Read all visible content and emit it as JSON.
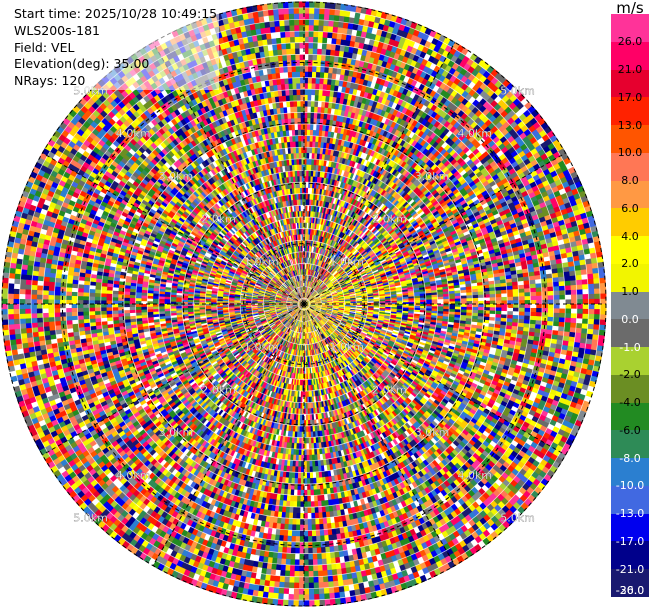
{
  "info": {
    "start_time": "Start time: 2025/10/28 10:49:15",
    "device": "WLS200s-181",
    "field": "Field: VEL",
    "elevation": "Elevation(deg): 35.00",
    "nrays": "NRays: 120"
  },
  "colorbar": {
    "unit": "m/s",
    "bins": [
      {
        "label": "26.0",
        "color": "#ff3399"
      },
      {
        "label": "21.0",
        "color": "#ff0066"
      },
      {
        "label": "17.0",
        "color": "#e6002e"
      },
      {
        "label": "13.0",
        "color": "#ff2200"
      },
      {
        "label": "10.0",
        "color": "#ff5500"
      },
      {
        "label": "8.0",
        "color": "#ff7755"
      },
      {
        "label": "6.0",
        "color": "#ff9944"
      },
      {
        "label": "4.0",
        "color": "#ffcc00"
      },
      {
        "label": "2.0",
        "color": "#ffff00"
      },
      {
        "label": "1.0",
        "color": "#f2f500"
      },
      {
        "label": "0.0",
        "color": "#808a92"
      },
      {
        "label": "-1.0",
        "color": "#6b6b6b"
      },
      {
        "label": "-2.0",
        "color": "#a9d130"
      },
      {
        "label": "-4.0",
        "color": "#6b8e23"
      },
      {
        "label": "-6.0",
        "color": "#228b22"
      },
      {
        "label": "-8.0",
        "color": "#2e8b57"
      },
      {
        "label": "-10.0",
        "color": "#2b7fd0"
      },
      {
        "label": "-13.0",
        "color": "#4169e1"
      },
      {
        "label": "-17.0",
        "color": "#0000ee"
      },
      {
        "label": "-21.0",
        "color": "#00008b"
      },
      {
        "label": "-26.0",
        "color": "#191970"
      },
      {
        "label": "-30.0",
        "color": ""
      }
    ]
  },
  "chart_data": {
    "type": "heatmap",
    "projection": "polar",
    "nrays": 120,
    "max_range_km": 5.0,
    "grid": true,
    "range_rings": [
      {
        "label": "1.0km",
        "km": 1.0
      },
      {
        "label": "2.0km",
        "km": 2.0
      },
      {
        "label": "3.0km",
        "km": 3.0
      },
      {
        "label": "4.0km",
        "km": 4.0
      },
      {
        "label": "5.0km",
        "km": 5.0
      }
    ],
    "ring_label_azimuths_deg": [
      45,
      135,
      225,
      315
    ],
    "spoke_azimuths_deg": [
      0,
      30,
      60,
      90,
      120,
      150,
      180,
      210,
      240,
      270,
      300,
      330
    ],
    "near_center_bias": "positive values (yellow) concentrated at short range east/south-east of the origin",
    "value_range": [
      -30.0,
      30.0
    ]
  }
}
